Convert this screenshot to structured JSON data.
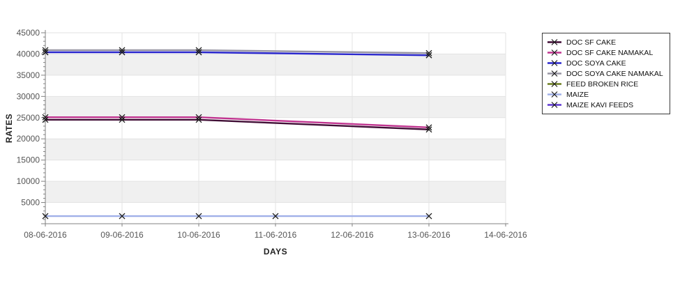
{
  "page": {
    "background": "#FFFFFF"
  },
  "chart_data": {
    "type": "line",
    "title": "",
    "xlabel": "DAYS",
    "ylabel": "RATES",
    "x_categories": [
      "08-06-2016",
      "09-06-2016",
      "10-06-2016",
      "11-06-2016",
      "12-06-2016",
      "13-06-2016",
      "14-06-2016"
    ],
    "ylim": [
      0,
      45000
    ],
    "y_major_step": 5000,
    "y_minor_step": 1000,
    "grid": "alternating horizontal bands + vertical gridlines at each date",
    "legend_position": "right",
    "marker": "x",
    "colors": {
      "band_alt": "#F0F0F0",
      "gridline": "#E3E3E3",
      "axis": "#808080",
      "tick_label": "#555555",
      "axis_title": "#222222",
      "marker": "#1A1A1A",
      "legend_border": "#3A3A3A"
    },
    "series": [
      {
        "name": "DOC SF CAKE",
        "color": "#400D35",
        "points": [
          [
            "08-06-2016",
            24500
          ],
          [
            "09-06-2016",
            24500
          ],
          [
            "10-06-2016",
            24500
          ],
          [
            "13-06-2016",
            22200
          ]
        ]
      },
      {
        "name": "DOC SF CAKE NAMAKAL",
        "color": "#C0338F",
        "points": [
          [
            "08-06-2016",
            25100
          ],
          [
            "09-06-2016",
            25100
          ],
          [
            "10-06-2016",
            25100
          ],
          [
            "13-06-2016",
            22700
          ]
        ]
      },
      {
        "name": "DOC SOYA CAKE",
        "color": "#2A27CE",
        "points": [
          [
            "08-06-2016",
            40400
          ],
          [
            "09-06-2016",
            40400
          ],
          [
            "10-06-2016",
            40400
          ],
          [
            "13-06-2016",
            39700
          ]
        ]
      },
      {
        "name": "DOC SOYA CAKE NAMAKAL",
        "color": "#9795A3",
        "points": [
          [
            "08-06-2016",
            40900
          ],
          [
            "09-06-2016",
            40900
          ],
          [
            "10-06-2016",
            40900
          ],
          [
            "13-06-2016",
            40200
          ]
        ]
      },
      {
        "name": "FEED BROKEN RICE",
        "color": "#6C7E1E",
        "points": []
      },
      {
        "name": "MAIZE",
        "color": "#A0B0E8",
        "points": [
          [
            "08-06-2016",
            1800
          ],
          [
            "09-06-2016",
            1800
          ],
          [
            "10-06-2016",
            1800
          ],
          [
            "11-06-2016",
            1800
          ],
          [
            "13-06-2016",
            1800
          ]
        ]
      },
      {
        "name": "MAIZE KAVI FEEDS",
        "color": "#5D36D2",
        "points": []
      }
    ]
  }
}
